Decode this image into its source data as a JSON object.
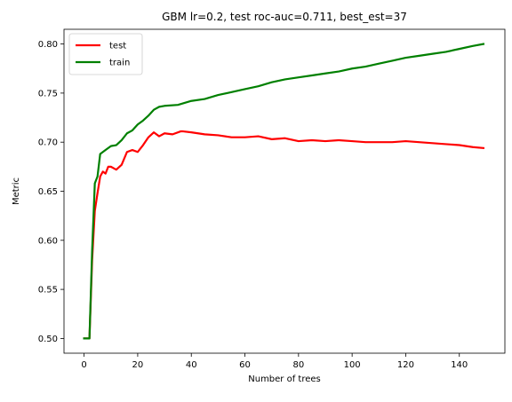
{
  "chart_data": {
    "type": "line",
    "title": "GBM lr=0.2, test roc-auc=0.711, best_est=37",
    "xlabel": "Number of trees",
    "ylabel": "Metric",
    "xlim": [
      -7.5,
      157
    ],
    "ylim": [
      0.485,
      0.815
    ],
    "xticks": [
      0,
      20,
      40,
      60,
      80,
      100,
      120,
      140
    ],
    "yticks": [
      0.5,
      0.55,
      0.6,
      0.65,
      0.7,
      0.75,
      0.8
    ],
    "grid": false,
    "legend": "top-left",
    "series": [
      {
        "name": "test",
        "color": "#ff0000",
        "x": [
          0,
          2,
          3,
          4,
          5,
          6,
          7,
          8,
          9,
          10,
          12,
          14,
          16,
          18,
          20,
          22,
          24,
          26,
          28,
          30,
          33,
          36,
          37,
          40,
          45,
          50,
          55,
          60,
          65,
          70,
          75,
          80,
          85,
          90,
          95,
          100,
          105,
          110,
          115,
          120,
          125,
          130,
          135,
          140,
          145,
          149
        ],
        "y": [
          0.5,
          0.5,
          0.58,
          0.63,
          0.648,
          0.665,
          0.67,
          0.668,
          0.675,
          0.675,
          0.672,
          0.677,
          0.69,
          0.692,
          0.69,
          0.697,
          0.705,
          0.71,
          0.706,
          0.709,
          0.708,
          0.711,
          0.711,
          0.71,
          0.708,
          0.707,
          0.705,
          0.705,
          0.706,
          0.703,
          0.704,
          0.701,
          0.702,
          0.701,
          0.702,
          0.701,
          0.7,
          0.7,
          0.7,
          0.701,
          0.7,
          0.699,
          0.698,
          0.697,
          0.695,
          0.694
        ]
      },
      {
        "name": "train",
        "color": "#008000",
        "x": [
          0,
          2,
          3,
          4,
          5,
          6,
          8,
          10,
          12,
          14,
          16,
          18,
          20,
          22,
          24,
          26,
          28,
          30,
          35,
          40,
          45,
          50,
          55,
          60,
          65,
          70,
          75,
          80,
          85,
          90,
          95,
          100,
          105,
          110,
          115,
          120,
          125,
          130,
          135,
          140,
          145,
          149
        ],
        "y": [
          0.5,
          0.5,
          0.59,
          0.658,
          0.665,
          0.688,
          0.692,
          0.696,
          0.697,
          0.702,
          0.709,
          0.712,
          0.718,
          0.722,
          0.727,
          0.733,
          0.736,
          0.737,
          0.738,
          0.742,
          0.744,
          0.748,
          0.751,
          0.754,
          0.757,
          0.761,
          0.764,
          0.766,
          0.768,
          0.77,
          0.772,
          0.775,
          0.777,
          0.78,
          0.783,
          0.786,
          0.788,
          0.79,
          0.792,
          0.795,
          0.798,
          0.8
        ]
      }
    ]
  }
}
